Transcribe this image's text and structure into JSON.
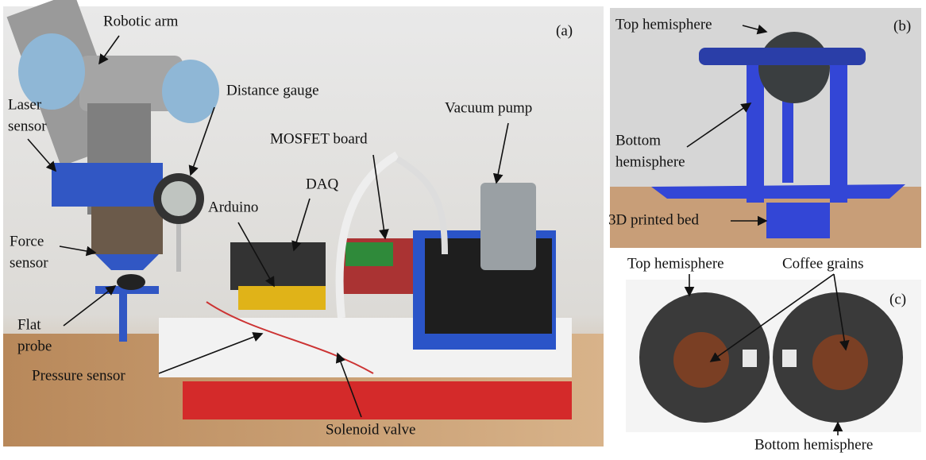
{
  "panels": [
    {
      "tag": "(a)",
      "labels": [
        {
          "lines": [
            "Robotic arm"
          ]
        },
        {
          "lines": [
            "Distance gauge"
          ]
        },
        {
          "lines": [
            "Laser",
            "sensor"
          ]
        },
        {
          "lines": [
            "MOSFET board"
          ]
        },
        {
          "lines": [
            "Vacuum pump"
          ]
        },
        {
          "lines": [
            "DAQ"
          ]
        },
        {
          "lines": [
            "Arduino"
          ]
        },
        {
          "lines": [
            "Force",
            "sensor"
          ]
        },
        {
          "lines": [
            "Flat",
            "probe"
          ]
        },
        {
          "lines": [
            "Pressure sensor"
          ]
        },
        {
          "lines": [
            "Solenoid valve"
          ]
        }
      ]
    },
    {
      "tag": "(b)",
      "labels": [
        {
          "lines": [
            "Top hemisphere"
          ]
        },
        {
          "lines": [
            "Bottom",
            "hemisphere"
          ]
        },
        {
          "lines": [
            "3D printed bed"
          ]
        }
      ]
    },
    {
      "tag": "(c)",
      "labels": [
        {
          "lines": [
            "Top hemisphere"
          ]
        },
        {
          "lines": [
            "Coffee grains"
          ]
        },
        {
          "lines": [
            "Bottom hemisphere"
          ]
        }
      ]
    }
  ]
}
